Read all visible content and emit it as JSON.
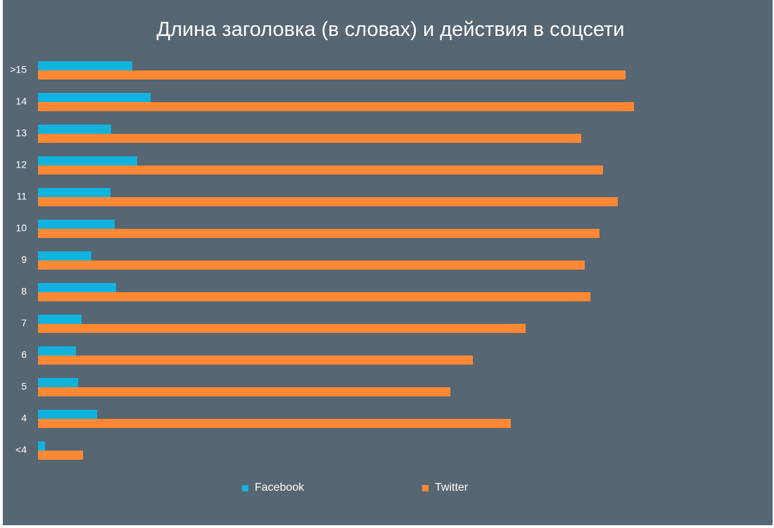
{
  "chart_data": {
    "type": "bar",
    "orientation": "horizontal",
    "title": "Длина заголовка (в словах) и действия в соцсети",
    "categories": [
      ">15",
      "14",
      "13",
      "12",
      "11",
      "10",
      "9",
      "8",
      "7",
      "6",
      "5",
      "4",
      "<4"
    ],
    "series": [
      {
        "name": "Facebook",
        "color": "#10B3DD",
        "values": [
          134,
          160,
          104,
          141,
          103,
          109,
          76,
          111,
          62,
          54,
          57,
          84,
          10
        ]
      },
      {
        "name": "Twitter",
        "color": "#FF8834",
        "values": [
          835,
          847,
          772,
          803,
          824,
          798,
          777,
          785,
          693,
          618,
          586,
          672,
          64
        ]
      }
    ],
    "value_axis_visible": false,
    "grid": false,
    "legend_position": "bottom"
  }
}
